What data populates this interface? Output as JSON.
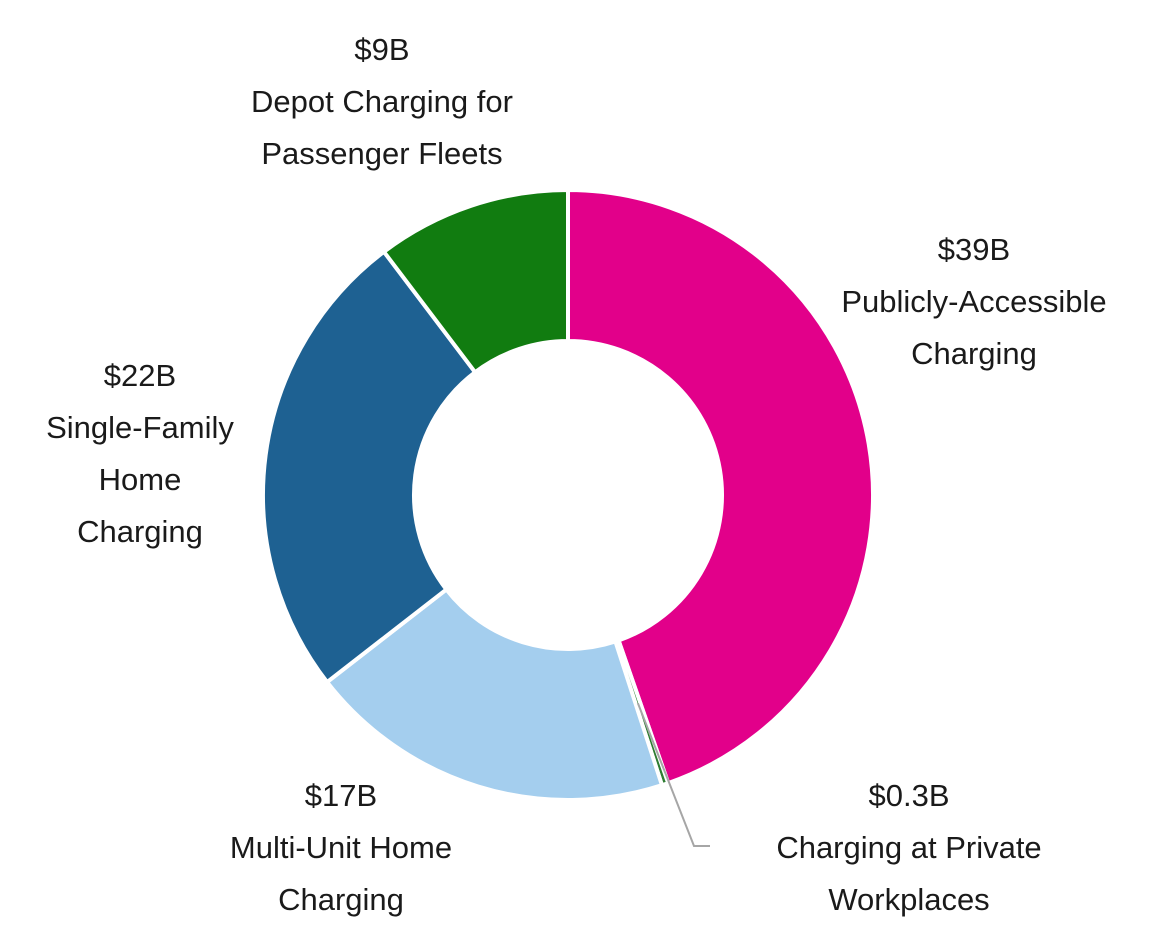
{
  "chart_data": {
    "type": "pie",
    "subtype": "donut",
    "title": "",
    "start": "top",
    "direction": "clockwise",
    "slices": [
      {
        "value": 39,
        "value_label": "$39B",
        "label_lines": [
          "Publicly-Accessible",
          "Charging"
        ],
        "color": "#E2008A"
      },
      {
        "value": 0.3,
        "value_label": "$0.3B",
        "label_lines": [
          "Charging at Private",
          "Workplaces"
        ],
        "color": "#2E7D32"
      },
      {
        "value": 17,
        "value_label": "$17B",
        "label_lines": [
          "Multi-Unit Home",
          "Charging"
        ],
        "color": "#A4CEEE"
      },
      {
        "value": 22,
        "value_label": "$22B",
        "label_lines": [
          "Single-Family",
          "Home",
          "Charging"
        ],
        "color": "#1E6192"
      },
      {
        "value": 9,
        "value_label": "$9B",
        "label_lines": [
          "Depot Charging for",
          "Passenger Fleets"
        ],
        "color": "#117C10"
      }
    ],
    "units": "billion USD"
  }
}
